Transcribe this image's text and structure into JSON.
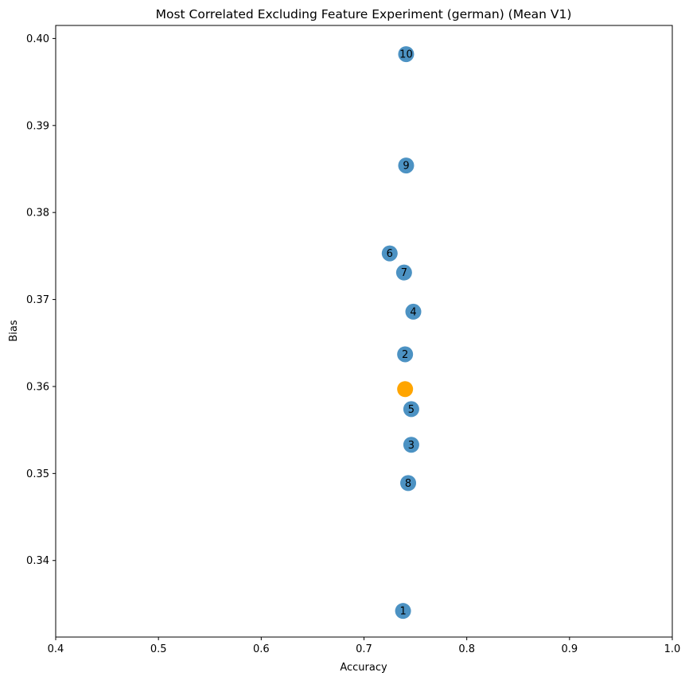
{
  "chart_data": {
    "type": "scatter",
    "title": "Most Correlated Excluding Feature Experiment (german) (Mean V1)",
    "xlabel": "Accuracy",
    "ylabel": "Bias",
    "xlim": [
      0.4,
      1.0
    ],
    "ylim": [
      0.3312,
      0.4015
    ],
    "xticks": [
      "0.4",
      "0.5",
      "0.6",
      "0.7",
      "0.8",
      "0.9",
      "1.0"
    ],
    "xtick_values": [
      0.4,
      0.5,
      0.6,
      0.7,
      0.8,
      0.9,
      1.0
    ],
    "yticks": [
      "0.34",
      "0.35",
      "0.36",
      "0.37",
      "0.38",
      "0.39",
      "0.40"
    ],
    "ytick_values": [
      0.34,
      0.35,
      0.36,
      0.37,
      0.38,
      0.39,
      0.4
    ],
    "grid": false,
    "series": [
      {
        "color": "#1f77b4",
        "points": [
          {
            "label": "1",
            "x": 0.738,
            "y": 0.3342
          },
          {
            "label": "2",
            "x": 0.74,
            "y": 0.3637
          },
          {
            "label": "3",
            "x": 0.746,
            "y": 0.3533
          },
          {
            "label": "4",
            "x": 0.748,
            "y": 0.3686
          },
          {
            "label": "5",
            "x": 0.746,
            "y": 0.3574
          },
          {
            "label": "6",
            "x": 0.725,
            "y": 0.3753
          },
          {
            "label": "7",
            "x": 0.739,
            "y": 0.3731
          },
          {
            "label": "8",
            "x": 0.743,
            "y": 0.3489
          },
          {
            "label": "9",
            "x": 0.741,
            "y": 0.3854
          },
          {
            "label": "10",
            "x": 0.741,
            "y": 0.3982
          }
        ]
      },
      {
        "color": "#ffa500",
        "points": [
          {
            "label": "",
            "x": 0.74,
            "y": 0.3597
          }
        ]
      }
    ]
  }
}
